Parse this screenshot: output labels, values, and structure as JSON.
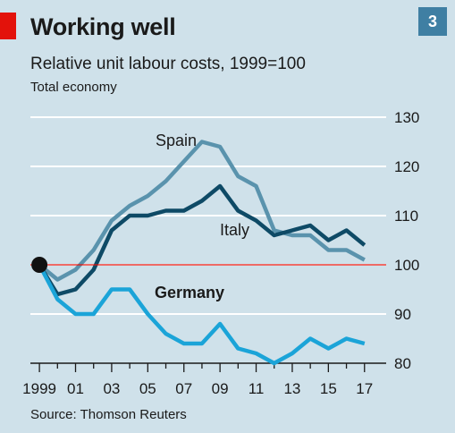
{
  "header": {
    "title": "Working well",
    "subtitle": "Relative unit labour costs, 1999=100",
    "subsubtitle": "Total economy",
    "badge": "3"
  },
  "footer": {
    "source": "Source: Thomson Reuters"
  },
  "colors": {
    "background": "#cfe1ea",
    "spain": "#5a93ad",
    "italy": "#0e4a66",
    "germany": "#1ba4d8",
    "baseline": "#e3120b",
    "grid": "#ffffff",
    "accent": "#e3120b",
    "badge": "#3f7fa3"
  },
  "chart_data": {
    "type": "line",
    "x": [
      1999,
      2000,
      2001,
      2002,
      2003,
      2004,
      2005,
      2006,
      2007,
      2008,
      2009,
      2010,
      2011,
      2012,
      2013,
      2014,
      2015,
      2016,
      2017
    ],
    "x_tick_labels": [
      "1999",
      "01",
      "03",
      "05",
      "07",
      "09",
      "11",
      "13",
      "15",
      "17"
    ],
    "x_tick_positions": [
      1999,
      2001,
      2003,
      2005,
      2007,
      2009,
      2011,
      2013,
      2015,
      2017
    ],
    "y_ticks": [
      80,
      90,
      100,
      110,
      120,
      130
    ],
    "ylim": [
      80,
      130
    ],
    "xlim": [
      1998.5,
      2018.2
    ],
    "y_axis_side": "right",
    "baseline": 100,
    "grid": true,
    "series": [
      {
        "name": "Spain",
        "color": "#5a93ad",
        "values": [
          100,
          97,
          99,
          103,
          109,
          112,
          114,
          117,
          121,
          125,
          124,
          118,
          116,
          107,
          106,
          106,
          103,
          103,
          101
        ]
      },
      {
        "name": "Italy",
        "color": "#0e4a66",
        "values": [
          100,
          94,
          95,
          99,
          107,
          110,
          110,
          111,
          111,
          113,
          116,
          111,
          109,
          106,
          107,
          108,
          105,
          107,
          104
        ]
      },
      {
        "name": "Germany",
        "color": "#1ba4d8",
        "values": [
          100,
          93,
          90,
          90,
          95,
          95,
          90,
          86,
          84,
          84,
          88,
          83,
          82,
          80,
          82,
          85,
          83,
          85,
          84
        ]
      }
    ]
  }
}
